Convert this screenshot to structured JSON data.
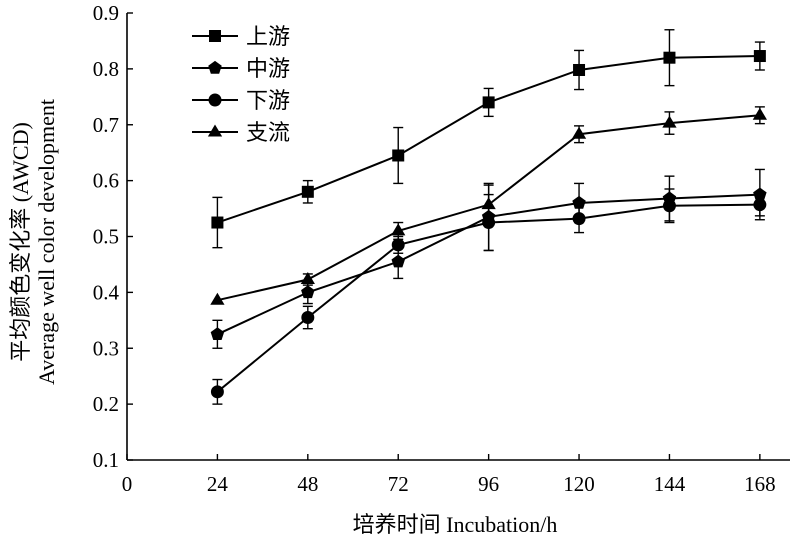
{
  "chart_data": {
    "type": "line",
    "xlabel": "培养时间 Incubation/h",
    "ylabel_lines": [
      "平均颜色变化率 (AWCD)",
      "Average well color development"
    ],
    "xlim": [
      0,
      176
    ],
    "ylim": [
      0.1,
      0.9
    ],
    "x_ticks": [
      0,
      24,
      48,
      72,
      96,
      120,
      144,
      168
    ],
    "x_tick_labels": [
      "0",
      "24",
      "48",
      "72",
      "96",
      "120",
      "144",
      "168"
    ],
    "y_ticks": [
      0.1,
      0.2,
      0.3,
      0.4,
      0.5,
      0.6,
      0.7,
      0.8,
      0.9
    ],
    "y_tick_labels": [
      "0.1",
      "0.2",
      "0.3",
      "0.4",
      "0.5",
      "0.6",
      "0.7",
      "0.8",
      "0.9"
    ],
    "grid": false,
    "legend_position": "top-left",
    "series": [
      {
        "name": "上游",
        "marker": "square",
        "x": [
          24,
          48,
          72,
          96,
          120,
          144,
          168
        ],
        "values": [
          0.525,
          0.58,
          0.645,
          0.74,
          0.798,
          0.82,
          0.823
        ],
        "errors": [
          0.045,
          0.02,
          0.05,
          0.025,
          0.035,
          0.05,
          0.025
        ]
      },
      {
        "name": "中游",
        "marker": "pentagon",
        "x": [
          24,
          48,
          72,
          96,
          120,
          144,
          168
        ],
        "values": [
          0.325,
          0.4,
          0.455,
          0.535,
          0.56,
          0.568,
          0.575
        ],
        "errors": [
          0.025,
          0.02,
          0.03,
          0.06,
          0.035,
          0.04,
          0.045
        ]
      },
      {
        "name": "下游",
        "marker": "circle",
        "x": [
          24,
          48,
          72,
          96,
          120,
          144,
          168
        ],
        "values": [
          0.222,
          0.355,
          0.485,
          0.525,
          0.532,
          0.555,
          0.557
        ],
        "errors": [
          0.022,
          0.02,
          0.015,
          0.05,
          0.025,
          0.03,
          0.02
        ]
      },
      {
        "name": "支流",
        "marker": "triangle",
        "x": [
          24,
          48,
          72,
          96,
          120,
          144,
          168
        ],
        "values": [
          0.386,
          0.423,
          0.51,
          0.557,
          0.683,
          0.703,
          0.717
        ],
        "errors": [
          0.0,
          0.01,
          0.015,
          0.035,
          0.015,
          0.02,
          0.015
        ]
      }
    ]
  },
  "colors": {
    "ink": "#000000",
    "background": "#ffffff"
  }
}
